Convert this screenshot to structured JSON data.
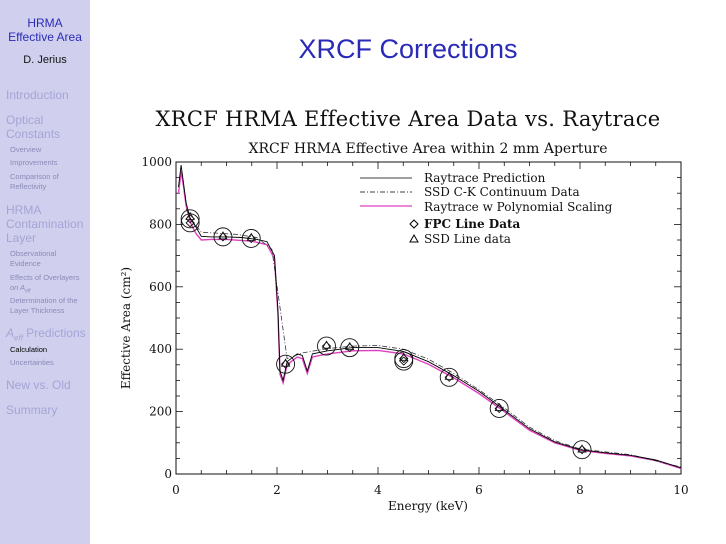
{
  "sidebar": {
    "title_line1": "HRMA",
    "title_line2": "Effective Area",
    "author": "D. Jerius",
    "nav": {
      "introduction": "Introduction",
      "optical_line1": "Optical",
      "optical_line2": "Constants",
      "overview": "Overview",
      "improvements": "Improvements",
      "comparison_line1": "Comparison of",
      "comparison_line2": "Reflectivity",
      "hrma_line1": "HRMA",
      "hrma_line2": "Contamination",
      "hrma_line3": "Layer",
      "observational_line1": "Observational",
      "observational_line2": "Evidence",
      "effects_line1": "Effects of Overlayers",
      "effects_line2_prefix": "on A",
      "effects_line2_sub": "eff",
      "determination_line1": "Determination of the",
      "determination_line2": "Layer Thickness",
      "aeff_A": "A",
      "aeff_sub": "eff",
      "aeff_rest": " Predictions",
      "calculation": "Calculation",
      "uncertainties": "Uncertainties",
      "new_vs_old": "New vs. Old",
      "summary": "Summary"
    }
  },
  "slide": {
    "title": "XRCF Corrections",
    "figure_title": "XRCF HRMA Effective Area Data vs. Raytrace"
  },
  "colors": {
    "sidebar_bg": "#d0d0ee",
    "accent": "#2a2ab8",
    "raytrace": "#000000",
    "poly": "#e040c0"
  },
  "chart_data": {
    "type": "line",
    "title": "XRCF HRMA Effective Area within 2 mm Aperture",
    "xlabel": "Energy (keV)",
    "ylabel": "Effective Area (cm²)",
    "xlim": [
      0,
      10
    ],
    "ylim": [
      0,
      1000
    ],
    "xticks": [
      0,
      2,
      4,
      6,
      8,
      10
    ],
    "yticks": [
      0,
      200,
      400,
      600,
      800,
      1000
    ],
    "legend": {
      "raytrace": "Raytrace Prediction",
      "ssd_continuum": "SSD C-K Continuum Data",
      "poly": "Raytrace w Polynomial Scaling",
      "fpc": "FPC Line Data",
      "ssd_line": "SSD Line data"
    },
    "series": [
      {
        "name": "Raytrace Prediction",
        "points": [
          [
            0.05,
            920
          ],
          [
            0.1,
            990
          ],
          [
            0.15,
            930
          ],
          [
            0.2,
            870
          ],
          [
            0.28,
            820
          ],
          [
            0.4,
            790
          ],
          [
            0.5,
            762
          ],
          [
            0.7,
            760
          ],
          [
            1.0,
            760
          ],
          [
            1.3,
            758
          ],
          [
            1.6,
            752
          ],
          [
            1.8,
            745
          ],
          [
            1.95,
            700
          ],
          [
            2.02,
            520
          ],
          [
            2.06,
            330
          ],
          [
            2.12,
            300
          ],
          [
            2.2,
            360
          ],
          [
            2.4,
            385
          ],
          [
            2.5,
            380
          ],
          [
            2.6,
            330
          ],
          [
            2.7,
            385
          ],
          [
            3.0,
            395
          ],
          [
            3.5,
            405
          ],
          [
            4.0,
            405
          ],
          [
            4.5,
            393
          ],
          [
            5.0,
            360
          ],
          [
            5.5,
            315
          ],
          [
            6.0,
            265
          ],
          [
            6.5,
            205
          ],
          [
            7.0,
            145
          ],
          [
            7.5,
            103
          ],
          [
            8.0,
            78
          ],
          [
            8.5,
            68
          ],
          [
            9.0,
            60
          ],
          [
            9.5,
            45
          ],
          [
            10.0,
            20
          ]
        ]
      },
      {
        "name": "SSD C-K Continuum Data",
        "points": [
          [
            0.2,
            850
          ],
          [
            0.3,
            815
          ],
          [
            0.5,
            775
          ],
          [
            0.8,
            772
          ],
          [
            1.2,
            768
          ],
          [
            1.6,
            758
          ],
          [
            1.9,
            720
          ],
          [
            2.2,
            370
          ],
          [
            2.5,
            388
          ],
          [
            3.0,
            402
          ],
          [
            3.5,
            410
          ],
          [
            4.0,
            412
          ],
          [
            4.5,
            400
          ],
          [
            5.0,
            368
          ],
          [
            5.5,
            322
          ],
          [
            6.0,
            270
          ],
          [
            6.5,
            212
          ],
          [
            7.0,
            150
          ],
          [
            7.5,
            107
          ],
          [
            8.0,
            80
          ],
          [
            9.0,
            62
          ],
          [
            10.0,
            22
          ]
        ]
      },
      {
        "name": "Raytrace w Polynomial Scaling",
        "points": [
          [
            0.05,
            900
          ],
          [
            0.1,
            970
          ],
          [
            0.15,
            920
          ],
          [
            0.2,
            860
          ],
          [
            0.3,
            800
          ],
          [
            0.4,
            770
          ],
          [
            0.5,
            750
          ],
          [
            0.7,
            752
          ],
          [
            1.0,
            752
          ],
          [
            1.5,
            746
          ],
          [
            1.8,
            735
          ],
          [
            1.95,
            690
          ],
          [
            2.02,
            510
          ],
          [
            2.06,
            320
          ],
          [
            2.12,
            292
          ],
          [
            2.2,
            350
          ],
          [
            2.4,
            375
          ],
          [
            2.5,
            370
          ],
          [
            2.6,
            322
          ],
          [
            2.7,
            375
          ],
          [
            3.0,
            385
          ],
          [
            3.5,
            395
          ],
          [
            4.0,
            396
          ],
          [
            4.5,
            385
          ],
          [
            5.0,
            352
          ],
          [
            5.5,
            308
          ],
          [
            6.0,
            258
          ],
          [
            6.5,
            200
          ],
          [
            7.0,
            140
          ],
          [
            7.5,
            100
          ],
          [
            8.0,
            76
          ],
          [
            8.5,
            66
          ],
          [
            9.0,
            58
          ],
          [
            9.5,
            43
          ],
          [
            10.0,
            18
          ]
        ]
      },
      {
        "name": "FPC Line Data",
        "points": [
          [
            0.28,
            818
          ],
          [
            0.28,
            805
          ],
          [
            0.93,
            760
          ],
          [
            1.49,
            755
          ],
          [
            2.17,
            352
          ],
          [
            2.98,
            410
          ],
          [
            3.44,
            405
          ],
          [
            4.51,
            370
          ],
          [
            4.51,
            362
          ],
          [
            5.41,
            310
          ],
          [
            6.4,
            210
          ],
          [
            8.04,
            78
          ]
        ]
      },
      {
        "name": "SSD Line data",
        "points": [
          [
            0.28,
            825
          ],
          [
            0.93,
            763
          ],
          [
            1.49,
            758
          ],
          [
            2.17,
            355
          ],
          [
            2.98,
            413
          ],
          [
            3.44,
            408
          ],
          [
            4.51,
            374
          ],
          [
            5.41,
            313
          ],
          [
            6.4,
            213
          ],
          [
            8.04,
            80
          ]
        ]
      }
    ]
  }
}
